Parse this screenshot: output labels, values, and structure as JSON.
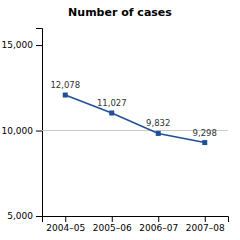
{
  "chart_data": {
    "type": "line",
    "title": "Number of cases",
    "categories": [
      "2004–05",
      "2005–06",
      "2006–07",
      "2007–08"
    ],
    "values": [
      12078,
      11027,
      9832,
      9298
    ],
    "value_labels": [
      "12,078",
      "11,027",
      "9,832",
      "9,298"
    ],
    "data_labels": true,
    "color": "#1F5096",
    "marker": "square",
    "ylim": [
      5000,
      16000
    ],
    "yticks": [
      {
        "value": 5000,
        "label": "5,000"
      },
      {
        "value": 10000,
        "label": "10,000"
      },
      {
        "value": 15000,
        "label": "15,000"
      }
    ],
    "reference_lines": [
      10000
    ],
    "grid": false
  }
}
